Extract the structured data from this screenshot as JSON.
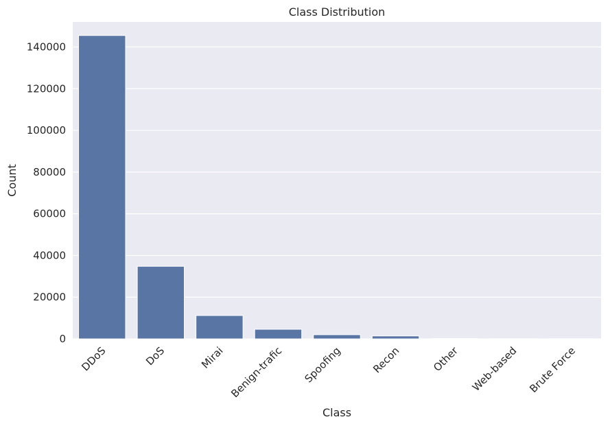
{
  "chart_data": {
    "type": "bar",
    "title": "Class Distribution",
    "xlabel": "Class",
    "ylabel": "Count",
    "categories": [
      "DDoS",
      "DoS",
      "Mirai",
      "Benign-trafic",
      "Spoofing",
      "Recon",
      "Other",
      "Web-based",
      "Brute Force"
    ],
    "values": [
      145500,
      34800,
      11200,
      4600,
      2000,
      1400,
      150,
      100,
      50
    ],
    "ylim": [
      0,
      152000
    ],
    "yticks": [
      0,
      20000,
      40000,
      60000,
      80000,
      100000,
      120000,
      140000
    ],
    "grid": true,
    "legend": "none",
    "colors": {
      "bar": "#5875a4",
      "background": "#eaeaf2",
      "grid": "#ffffff",
      "text": "#262626"
    }
  }
}
